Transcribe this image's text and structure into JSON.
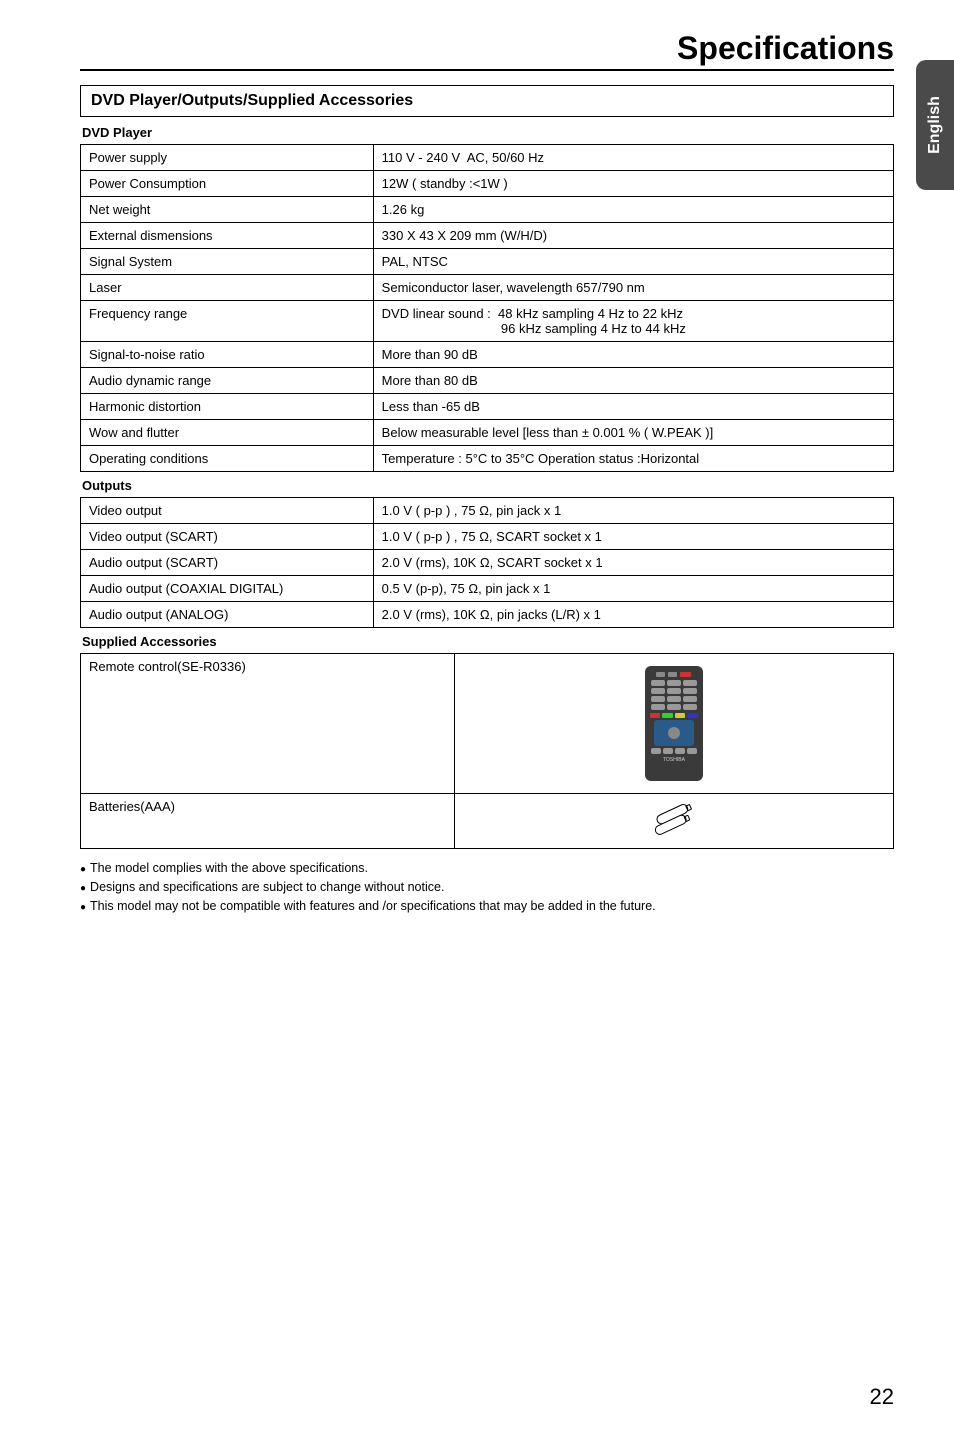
{
  "page_title": "Specifications",
  "side_tab": "English",
  "section_header": "DVD Player/Outputs/Supplied  Accessories",
  "dvd_player": {
    "label": "DVD Player",
    "rows": [
      [
        "Power supply",
        "110 V - 240 V  AC, 50/60 Hz"
      ],
      [
        "Power Consumption",
        "12W ( standby :<1W )"
      ],
      [
        "Net weight",
        "1.26 kg"
      ],
      [
        "External dismensions",
        "330 X 43 X 209 mm (W/H/D)"
      ],
      [
        "Signal System",
        "PAL, NTSC"
      ],
      [
        "Laser",
        "Semiconductor laser, wavelength 657/790 nm"
      ],
      [
        "Frequency range",
        "DVD linear sound :  48 kHz sampling 4 Hz to 22 kHz\n                                 96 kHz sampling 4 Hz to 44 kHz"
      ],
      [
        "Signal-to-noise ratio",
        "More than 90 dB"
      ],
      [
        "Audio dynamic range",
        "More than 80 dB"
      ],
      [
        "Harmonic distortion",
        "Less than -65 dB"
      ],
      [
        "Wow and flutter",
        "Below measurable level [less than ± 0.001 % ( W.PEAK )]"
      ],
      [
        "Operating conditions",
        "Temperature : 5°C to 35°C Operation status :Horizontal"
      ]
    ]
  },
  "outputs": {
    "label": "Outputs",
    "rows": [
      [
        "Video output",
        "1.0 V ( p-p ) , 75 Ω, pin jack x 1"
      ],
      [
        "Video output (SCART)",
        "1.0 V ( p-p ) , 75 Ω, SCART socket x 1"
      ],
      [
        "Audio output (SCART)",
        "2.0 V (rms), 10K Ω, SCART socket x 1"
      ],
      [
        "Audio output (COAXIAL DIGITAL)",
        "0.5 V (p-p), 75 Ω, pin jack x 1"
      ],
      [
        "Audio output (ANALOG)",
        "2.0 V (rms), 10K Ω, pin jacks (L/R) x 1"
      ]
    ]
  },
  "accessories": {
    "label": "Supplied Accessories",
    "rows": [
      "Remote control(SE-R0336)",
      "Batteries(AAA)"
    ]
  },
  "notes": [
    "The model complies with the above specifications.",
    "Designs and specifications are subject to change without notice.",
    "This model may not be compatible with features and /or specifications that may be added in the future."
  ],
  "page_number": "22",
  "colors": {
    "text": "#000000",
    "background": "#ffffff",
    "tab_bg": "#4a4a4a",
    "tab_text": "#ffffff",
    "remote_body": "#3a3a3a",
    "remote_red": "#c33333",
    "remote_blue": "#2a5a8a"
  }
}
